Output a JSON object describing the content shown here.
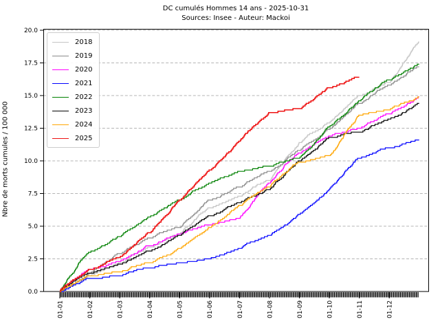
{
  "title": "DC cumulés Hommes 14 ans  - 2025-10-31",
  "subtitle": "Sources: Insee - Auteur: Mackoi",
  "chart_data": {
    "type": "line",
    "style": "cumulative step lines",
    "title": "DC cumulés Hommes 14 ans  - 2025-10-31",
    "subtitle": "Sources: Insee - Auteur: Mackoi",
    "xlabel": "",
    "ylabel": "Nbre de morts cumules / 100 000",
    "ylim": [
      0,
      20
    ],
    "yticks": [
      0.0,
      2.5,
      5.0,
      7.5,
      10.0,
      12.5,
      15.0,
      17.5,
      20.0
    ],
    "xtick_labels": [
      "01-01",
      "01-02",
      "01-03",
      "01-04",
      "01-05",
      "01-06",
      "01-07",
      "01-08",
      "01-09",
      "01-10",
      "01-11",
      "01-12"
    ],
    "xtick_rotation": -90,
    "minor_xticks": "daily (dense black band under axis)",
    "grid": "horizontal dashed gray",
    "legend_position": "upper-left",
    "x_anchor_note": "values are cumulative deaths per 100 000 at the 1st of each month Jan..Dec, plus Dec-31 (2025 series ends 2025-10-31)",
    "series": [
      {
        "name": "2018",
        "color": "#c4c4c4",
        "values": [
          0,
          1.2,
          2.2,
          3.4,
          4.4,
          6.4,
          7.3,
          8.5,
          11.4,
          12.9,
          15.0,
          16.0,
          19.1
        ]
      },
      {
        "name": "2019",
        "color": "#8a8a8a",
        "values": [
          0,
          1.4,
          2.9,
          4.1,
          4.9,
          7.0,
          8.0,
          9.2,
          10.8,
          12.4,
          14.4,
          15.8,
          17.2
        ]
      },
      {
        "name": "2020",
        "color": "#ff00ff",
        "values": [
          0,
          1.7,
          2.3,
          3.5,
          4.4,
          5.1,
          5.6,
          8.3,
          10.6,
          11.9,
          12.5,
          13.6,
          14.9
        ]
      },
      {
        "name": "2021",
        "color": "#0000ff",
        "values": [
          0,
          1.0,
          1.2,
          1.8,
          2.2,
          2.5,
          3.3,
          4.3,
          5.9,
          7.8,
          10.2,
          11.0,
          11.6
        ]
      },
      {
        "name": "2022",
        "color": "#008000",
        "values": [
          0,
          3.0,
          4.2,
          5.7,
          7.0,
          8.3,
          9.2,
          9.6,
          10.2,
          12.6,
          14.6,
          16.2,
          17.4
        ]
      },
      {
        "name": "2023",
        "color": "#000000",
        "values": [
          0,
          1.4,
          2.1,
          3.1,
          4.3,
          5.8,
          6.8,
          7.8,
          10.0,
          11.8,
          12.2,
          13.2,
          14.4
        ]
      },
      {
        "name": "2024",
        "color": "#ffa500",
        "values": [
          0,
          1.2,
          1.5,
          2.2,
          3.3,
          4.9,
          6.6,
          8.0,
          9.9,
          10.4,
          13.5,
          13.9,
          14.9
        ]
      },
      {
        "name": "2025",
        "color": "#ee1111",
        "values": [
          0,
          1.7,
          2.6,
          4.5,
          7.0,
          9.3,
          11.5,
          13.7,
          14.0,
          15.6,
          16.4
        ],
        "ends_at": "2025-10-31"
      }
    ]
  }
}
